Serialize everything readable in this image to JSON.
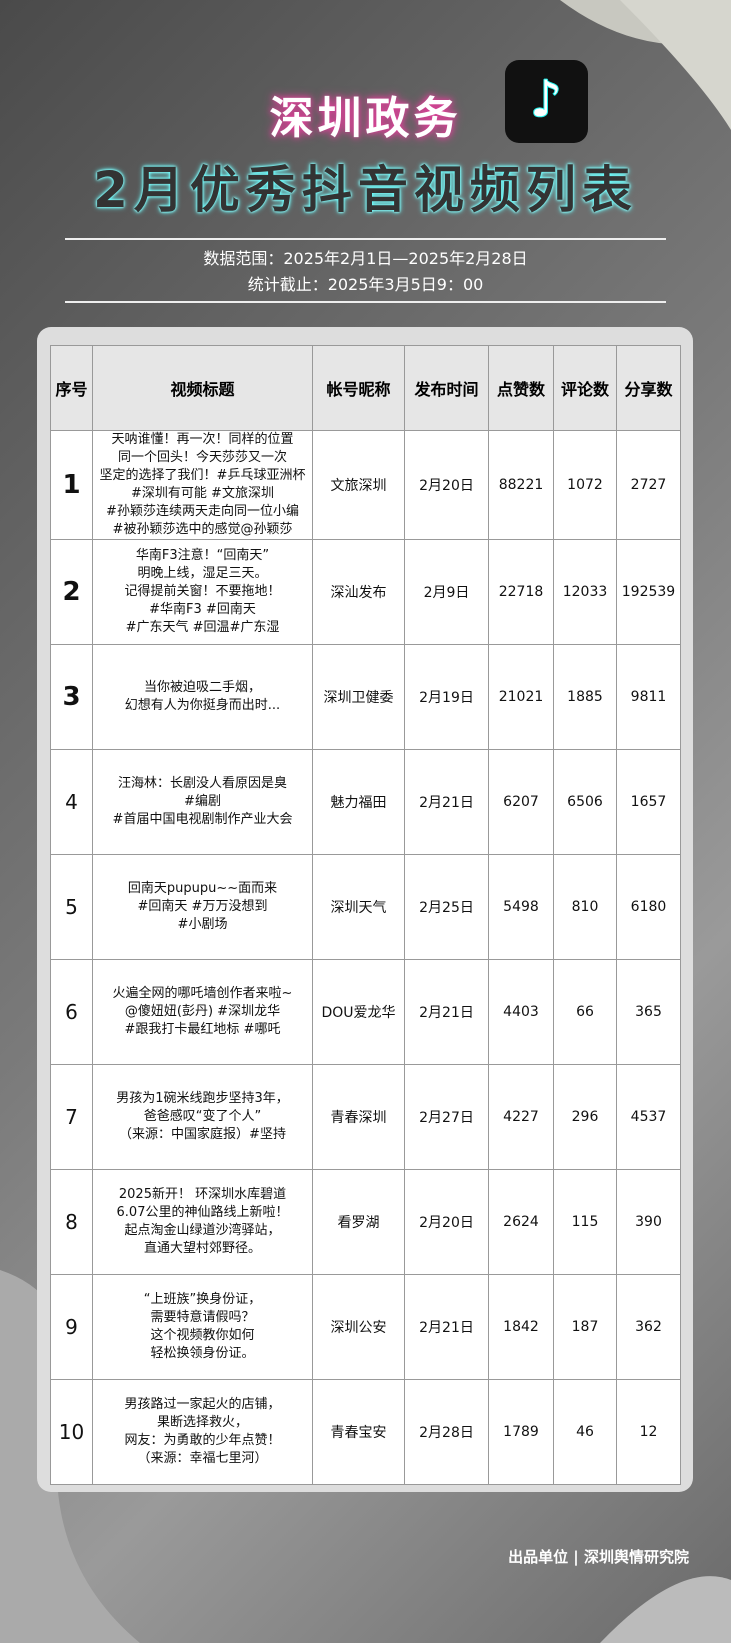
{
  "header": {
    "title": "深圳政务",
    "subtitle": "2月优秀抖音视频列表",
    "range": "数据范围：2025年2月1日—2025年2月28日",
    "cutoff": "统计截止：2025年3月5日9：00"
  },
  "table": {
    "columns": [
      "序号",
      "视频标题",
      "帐号昵称",
      "发布时间",
      "点赞数",
      "评论数",
      "分享数"
    ],
    "rows": [
      [
        "1",
        [
          "天呐谁懂！再一次！同样的位置",
          "同一个回头！今天莎莎又一次",
          "坚定的选择了我们！#乒乓球亚洲杯",
          "#深圳有可能 #文旅深圳",
          "#孙颖莎连续两天走向同一位小编",
          "#被孙颖莎选中的感觉@孙颖莎"
        ],
        "文旅深圳",
        "2月20日",
        88221,
        1072,
        2727
      ],
      [
        "2",
        [
          "华南F3注意！“回南天”",
          "明晚上线，湿足三天。",
          "记得提前关窗！不要拖地！",
          "#华南F3 #回南天",
          "#广东天气 #回温#广东湿"
        ],
        "深汕发布",
        "2月9日",
        22718,
        12033,
        192539
      ],
      [
        "3",
        [
          "当你被迫吸二手烟，",
          "幻想有人为你挺身而出时..."
        ],
        "深圳卫健委",
        "2月19日",
        21021,
        1885,
        9811
      ],
      [
        "4",
        [
          "汪海林：长剧没人看原因是臭",
          "#编剧",
          "#首届中国电视剧制作产业大会"
        ],
        "魅力福田",
        "2月21日",
        6207,
        6506,
        1657
      ],
      [
        "5",
        [
          "回南天pupupu~~面而来",
          "#回南天 #万万没想到",
          "#小剧场"
        ],
        "深圳天气",
        "2月25日",
        5498,
        810,
        6180
      ],
      [
        "6",
        [
          "火遍全网的哪吒墙创作者来啦~",
          "@傻妞妞(彭丹) #深圳龙华",
          "#跟我打卡最红地标 #哪吒"
        ],
        "DOU爱龙华",
        "2月21日",
        4403,
        66,
        365
      ],
      [
        "7",
        [
          "男孩为1碗米线跑步坚持3年，",
          "爸爸感叹“变了个人”",
          "（来源：中国家庭报）#坚持"
        ],
        "青春深圳",
        "2月27日",
        4227,
        296,
        4537
      ],
      [
        "8",
        [
          "2025新开！ 环深圳水库碧道",
          "6.07公里的神仙路线上新啦！",
          "起点淘金山绿道沙湾驿站，",
          "直通大望村郊野径。"
        ],
        "看罗湖",
        "2月20日",
        2624,
        115,
        390
      ],
      [
        "9",
        [
          "“上班族”换身份证，",
          "需要特意请假吗？",
          "这个视频教你如何",
          "轻松换领身份证。"
        ],
        "深圳公安",
        "2月21日",
        1842,
        187,
        362
      ],
      [
        "10",
        [
          "男孩路过一家起火的店铺，",
          "果断选择救火，",
          "网友：为勇敢的少年点赞！",
          "（来源：幸福七里河）"
        ],
        "青春宝安",
        "2月28日",
        1789,
        46,
        12
      ]
    ]
  },
  "footer": "出品单位 | 深圳舆情研究院"
}
